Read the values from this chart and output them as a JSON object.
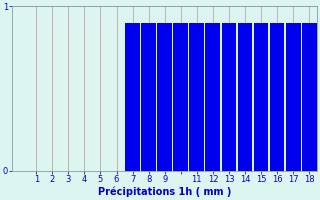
{
  "title": "",
  "xlabel": "Précipitations 1h ( mm )",
  "ylabel": "",
  "xlim": [
    -0.5,
    18.5
  ],
  "ylim": [
    0,
    1
  ],
  "yticks": [
    0,
    1
  ],
  "bar_x": [
    7,
    8,
    9,
    10,
    11,
    12,
    13,
    14,
    15,
    16,
    17,
    18
  ],
  "bar_heights": [
    0.9,
    0.9,
    0.9,
    0.9,
    0.9,
    0.9,
    0.9,
    0.9,
    0.9,
    0.9,
    0.9,
    0.9
  ],
  "bar_color": "#0000ee",
  "bg_color": "#ddf5f0",
  "grid_color_x": "#c09090",
  "grid_color_y": "#b8b8b8",
  "axis_color": "#8899aa",
  "text_color": "#0000cc",
  "bar_width": 0.92,
  "figsize": [
    3.2,
    2.0
  ],
  "dpi": 100,
  "xlabel_fontsize": 7,
  "tick_fontsize": 6
}
